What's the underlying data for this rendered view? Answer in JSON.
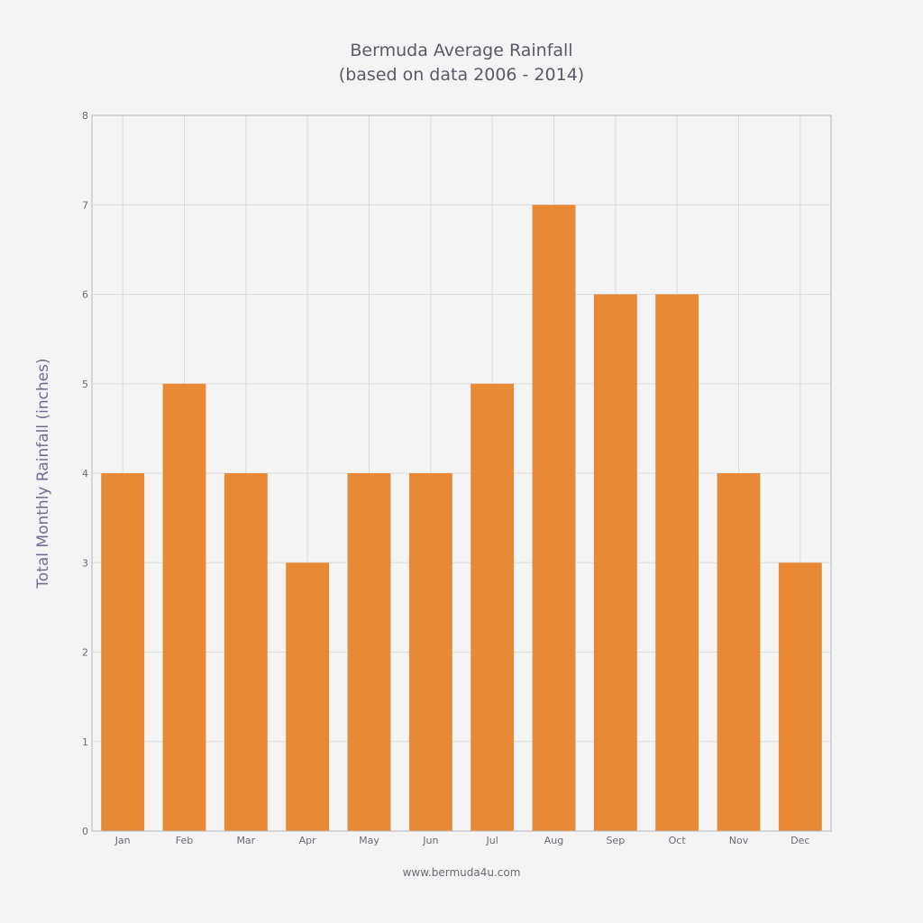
{
  "chart_data": {
    "type": "bar",
    "title": "Bermuda Average Rainfall",
    "subtitle": "(based on data 2006 - 2014)",
    "xlabel": "",
    "ylabel": "Total Monthly Rainfall (inches)",
    "ylim": [
      0,
      8
    ],
    "yticks": [
      "0",
      "1",
      "2",
      "3",
      "4",
      "5",
      "6",
      "7",
      "8"
    ],
    "categories": [
      "Jan",
      "Feb",
      "Mar",
      "Apr",
      "May",
      "Jun",
      "Jul",
      "Aug",
      "Sep",
      "Oct",
      "Nov",
      "Dec"
    ],
    "values": [
      4,
      5,
      4,
      3,
      4,
      4,
      5,
      7,
      6,
      6,
      4,
      3
    ],
    "grid": true,
    "bar_color": "#e88a35",
    "footer": "www.bermuda4u.com"
  }
}
